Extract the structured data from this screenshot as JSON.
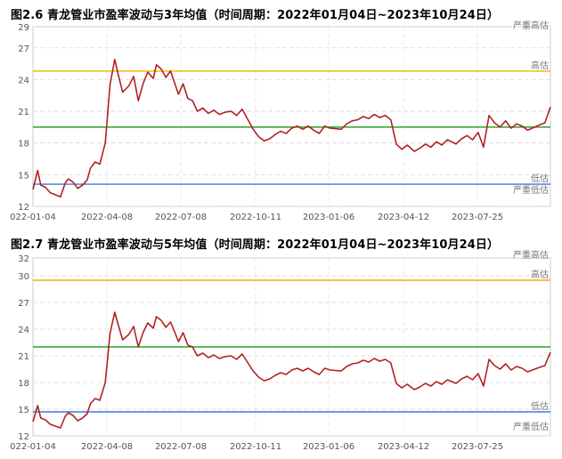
{
  "chart_data": [
    {
      "type": "line",
      "title": "图2.6 青龙管业市盈率波动与3年均值（时间周期：2022年01月04日~2023年10月24日）",
      "x_tick_labels": [
        "022-01-04",
        "2022-04-08",
        "2022-07-08",
        "2022-10-11",
        "2023-01-06",
        "2023-04-12",
        "2023-07-25"
      ],
      "y_ticks": [
        12,
        15,
        18,
        21,
        24,
        27,
        29
      ],
      "ylim": [
        12,
        29
      ],
      "grid": true,
      "reference_lines": [
        {
          "label": "严重高估",
          "value": 28.6,
          "color": "#ffffff"
        },
        {
          "label": "高估",
          "value": 24.8,
          "color": "#f0b400"
        },
        {
          "label": "均值",
          "value": 19.5,
          "color": "#2ca02c"
        },
        {
          "label": "低估",
          "value": 14.1,
          "color": "#3a7bd5"
        },
        {
          "label": "严重低估",
          "value": 13.0,
          "color": "#ffffff"
        }
      ],
      "series": [
        {
          "color": "#b22222",
          "x": [
            "2022-01-04",
            "2022-01-10",
            "2022-01-14",
            "2022-01-20",
            "2022-01-26",
            "2022-02-08",
            "2022-02-14",
            "2022-02-18",
            "2022-02-24",
            "2022-03-02",
            "2022-03-08",
            "2022-03-14",
            "2022-03-18",
            "2022-03-24",
            "2022-03-30",
            "2022-04-06",
            "2022-04-12",
            "2022-04-18",
            "2022-04-22",
            "2022-04-28",
            "2022-05-06",
            "2022-05-12",
            "2022-05-18",
            "2022-05-24",
            "2022-05-30",
            "2022-06-06",
            "2022-06-10",
            "2022-06-16",
            "2022-06-22",
            "2022-06-28",
            "2022-07-04",
            "2022-07-08",
            "2022-07-14",
            "2022-07-20",
            "2022-07-26",
            "2022-08-01",
            "2022-08-08",
            "2022-08-15",
            "2022-08-22",
            "2022-08-29",
            "2022-09-05",
            "2022-09-13",
            "2022-09-20",
            "2022-09-27",
            "2022-10-11",
            "2022-10-18",
            "2022-10-25",
            "2022-11-01",
            "2022-11-08",
            "2022-11-15",
            "2022-11-22",
            "2022-11-29",
            "2022-12-06",
            "2022-12-13",
            "2022-12-20",
            "2022-12-27",
            "2023-01-03",
            "2023-01-10",
            "2023-01-17",
            "2023-01-31",
            "2023-02-07",
            "2023-02-14",
            "2023-02-21",
            "2023-02-28",
            "2023-03-07",
            "2023-03-14",
            "2023-03-21",
            "2023-03-28",
            "2023-04-04",
            "2023-04-11",
            "2023-04-18",
            "2023-04-25",
            "2023-05-04",
            "2023-05-11",
            "2023-05-18",
            "2023-05-25",
            "2023-06-01",
            "2023-06-08",
            "2023-06-15",
            "2023-06-26",
            "2023-07-03",
            "2023-07-10",
            "2023-07-17",
            "2023-07-24",
            "2023-07-31",
            "2023-08-07",
            "2023-08-14",
            "2023-08-21",
            "2023-08-28",
            "2023-09-04",
            "2023-09-11",
            "2023-09-18",
            "2023-09-25",
            "2023-10-10",
            "2023-10-17",
            "2023-10-24"
          ],
          "values": [
            13.6,
            15.4,
            14.0,
            13.8,
            13.3,
            12.9,
            14.2,
            14.6,
            14.3,
            13.7,
            14.0,
            14.5,
            15.6,
            16.2,
            16.0,
            18.0,
            23.5,
            25.9,
            24.6,
            22.8,
            23.4,
            24.3,
            22.0,
            23.6,
            24.7,
            24.1,
            25.4,
            25.0,
            24.2,
            24.8,
            23.5,
            22.6,
            23.6,
            22.2,
            22.0,
            21.0,
            21.3,
            20.8,
            21.1,
            20.7,
            20.9,
            21.0,
            20.6,
            21.2,
            19.3,
            18.6,
            18.2,
            18.4,
            18.8,
            19.1,
            18.9,
            19.4,
            19.6,
            19.3,
            19.6,
            19.2,
            18.9,
            19.6,
            19.4,
            19.3,
            19.8,
            20.1,
            20.2,
            20.5,
            20.3,
            20.7,
            20.4,
            20.6,
            20.2,
            17.9,
            17.4,
            17.8,
            17.2,
            17.5,
            17.9,
            17.6,
            18.1,
            17.8,
            18.3,
            17.9,
            18.4,
            18.7,
            18.3,
            19.0,
            17.6,
            20.6,
            19.9,
            19.5,
            20.1,
            19.4,
            19.8,
            19.6,
            19.2,
            19.7,
            19.9,
            21.4
          ]
        }
      ]
    },
    {
      "type": "line",
      "title": "图2.7 青龙管业市盈率波动与5年均值（时间周期：2022年01月04日~2023年10月24日）",
      "x_tick_labels": [
        "022-01-04",
        "2022-04-08",
        "2022-07-08",
        "2022-10-11",
        "2023-01-06",
        "2023-04-12",
        "2023-07-25"
      ],
      "y_ticks": [
        12,
        15,
        18,
        21,
        24,
        27,
        30,
        32
      ],
      "ylim": [
        12,
        32
      ],
      "grid": true,
      "reference_lines": [
        {
          "label": "严重高估",
          "value": 31.7,
          "color": "#ffffff"
        },
        {
          "label": "高估",
          "value": 29.5,
          "color": "#f0b400"
        },
        {
          "label": "均值",
          "value": 22.0,
          "color": "#2ca02c"
        },
        {
          "label": "低估",
          "value": 14.7,
          "color": "#3a7bd5"
        },
        {
          "label": "严重低估",
          "value": 12.4,
          "color": "#ffffff"
        }
      ],
      "series": [
        {
          "color": "#b22222",
          "x": [
            "2022-01-04",
            "2022-01-10",
            "2022-01-14",
            "2022-01-20",
            "2022-01-26",
            "2022-02-08",
            "2022-02-14",
            "2022-02-18",
            "2022-02-24",
            "2022-03-02",
            "2022-03-08",
            "2022-03-14",
            "2022-03-18",
            "2022-03-24",
            "2022-03-30",
            "2022-04-06",
            "2022-04-12",
            "2022-04-18",
            "2022-04-22",
            "2022-04-28",
            "2022-05-06",
            "2022-05-12",
            "2022-05-18",
            "2022-05-24",
            "2022-05-30",
            "2022-06-06",
            "2022-06-10",
            "2022-06-16",
            "2022-06-22",
            "2022-06-28",
            "2022-07-04",
            "2022-07-08",
            "2022-07-14",
            "2022-07-20",
            "2022-07-26",
            "2022-08-01",
            "2022-08-08",
            "2022-08-15",
            "2022-08-22",
            "2022-08-29",
            "2022-09-05",
            "2022-09-13",
            "2022-09-20",
            "2022-09-27",
            "2022-10-11",
            "2022-10-18",
            "2022-10-25",
            "2022-11-01",
            "2022-11-08",
            "2022-11-15",
            "2022-11-22",
            "2022-11-29",
            "2022-12-06",
            "2022-12-13",
            "2022-12-20",
            "2022-12-27",
            "2023-01-03",
            "2023-01-10",
            "2023-01-17",
            "2023-01-31",
            "2023-02-07",
            "2023-02-14",
            "2023-02-21",
            "2023-02-28",
            "2023-03-07",
            "2023-03-14",
            "2023-03-21",
            "2023-03-28",
            "2023-04-04",
            "2023-04-11",
            "2023-04-18",
            "2023-04-25",
            "2023-05-04",
            "2023-05-11",
            "2023-05-18",
            "2023-05-25",
            "2023-06-01",
            "2023-06-08",
            "2023-06-15",
            "2023-06-26",
            "2023-07-03",
            "2023-07-10",
            "2023-07-17",
            "2023-07-24",
            "2023-07-31",
            "2023-08-07",
            "2023-08-14",
            "2023-08-21",
            "2023-08-28",
            "2023-09-04",
            "2023-09-11",
            "2023-09-18",
            "2023-09-25",
            "2023-10-10",
            "2023-10-17",
            "2023-10-24"
          ],
          "values": [
            13.6,
            15.4,
            14.0,
            13.8,
            13.3,
            12.9,
            14.2,
            14.6,
            14.3,
            13.7,
            14.0,
            14.5,
            15.6,
            16.2,
            16.0,
            18.0,
            23.5,
            25.9,
            24.6,
            22.8,
            23.4,
            24.3,
            22.0,
            23.6,
            24.7,
            24.1,
            25.4,
            25.0,
            24.2,
            24.8,
            23.5,
            22.6,
            23.6,
            22.2,
            22.0,
            21.0,
            21.3,
            20.8,
            21.1,
            20.7,
            20.9,
            21.0,
            20.6,
            21.2,
            19.3,
            18.6,
            18.2,
            18.4,
            18.8,
            19.1,
            18.9,
            19.4,
            19.6,
            19.3,
            19.6,
            19.2,
            18.9,
            19.6,
            19.4,
            19.3,
            19.8,
            20.1,
            20.2,
            20.5,
            20.3,
            20.7,
            20.4,
            20.6,
            20.2,
            17.9,
            17.4,
            17.8,
            17.2,
            17.5,
            17.9,
            17.6,
            18.1,
            17.8,
            18.3,
            17.9,
            18.4,
            18.7,
            18.3,
            19.0,
            17.6,
            20.6,
            19.9,
            19.5,
            20.1,
            19.4,
            19.8,
            19.6,
            19.2,
            19.7,
            19.9,
            21.4
          ]
        }
      ]
    }
  ]
}
